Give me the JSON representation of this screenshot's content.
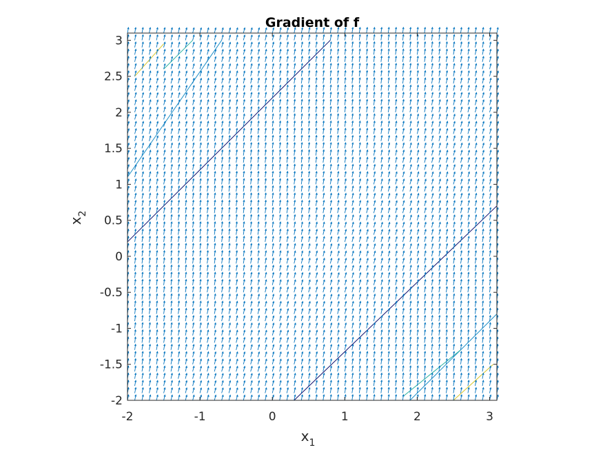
{
  "chart_data": {
    "type": "quiver",
    "title": "Gradient of f",
    "xlabel": {
      "base": "x",
      "sub": "1"
    },
    "ylabel": {
      "base": "x",
      "sub": "2"
    },
    "xlim": [
      -2,
      3.1
    ],
    "ylim": [
      -2,
      3.1
    ],
    "xticks": [
      -2,
      -1,
      0,
      1,
      2,
      3
    ],
    "yticks": [
      -2,
      -1.5,
      -1,
      -0.5,
      0,
      0.5,
      1,
      1.5,
      2,
      2.5,
      3
    ],
    "ytick_labels": [
      "-2",
      "-1.5",
      "-1",
      "-0.5",
      "0",
      "0.5",
      "1",
      "1.5",
      "2",
      "2.5",
      "3"
    ],
    "xtick_labels": [
      "-2",
      "-1",
      "0",
      "1",
      "2",
      "3"
    ],
    "grid": {
      "x": [
        -2,
        3.1
      ],
      "y": [
        -2,
        3.1
      ],
      "step": 0.1
    },
    "arrow_color": "#0072BD",
    "contour_lines": [
      {
        "color": "#0b0c6b",
        "points": [
          [
            -2,
            0.2
          ],
          [
            0.8,
            3.0
          ]
        ]
      },
      {
        "color": "#0b0c6b",
        "points": [
          [
            0.3,
            -2.0
          ],
          [
            3.1,
            0.7
          ]
        ]
      },
      {
        "color": "#1f8fc6",
        "points": [
          [
            -2,
            1.1
          ],
          [
            -0.7,
            3.0
          ]
        ]
      },
      {
        "color": "#1f8fc6",
        "points": [
          [
            1.9,
            -2.0
          ],
          [
            3.1,
            -0.8
          ]
        ]
      },
      {
        "color": "#2bb2a0",
        "points": [
          [
            -1.5,
            2.6
          ],
          [
            -1.1,
            3.0
          ]
        ]
      },
      {
        "color": "#2bb2a0",
        "points": [
          [
            1.8,
            -1.95
          ],
          [
            2.6,
            -1.3
          ]
        ]
      },
      {
        "color": "#d7c527",
        "points": [
          [
            -1.9,
            2.5
          ],
          [
            -1.5,
            2.95
          ]
        ]
      },
      {
        "color": "#d7c527",
        "points": [
          [
            2.5,
            -2.0
          ],
          [
            3.05,
            -1.5
          ]
        ]
      }
    ]
  }
}
